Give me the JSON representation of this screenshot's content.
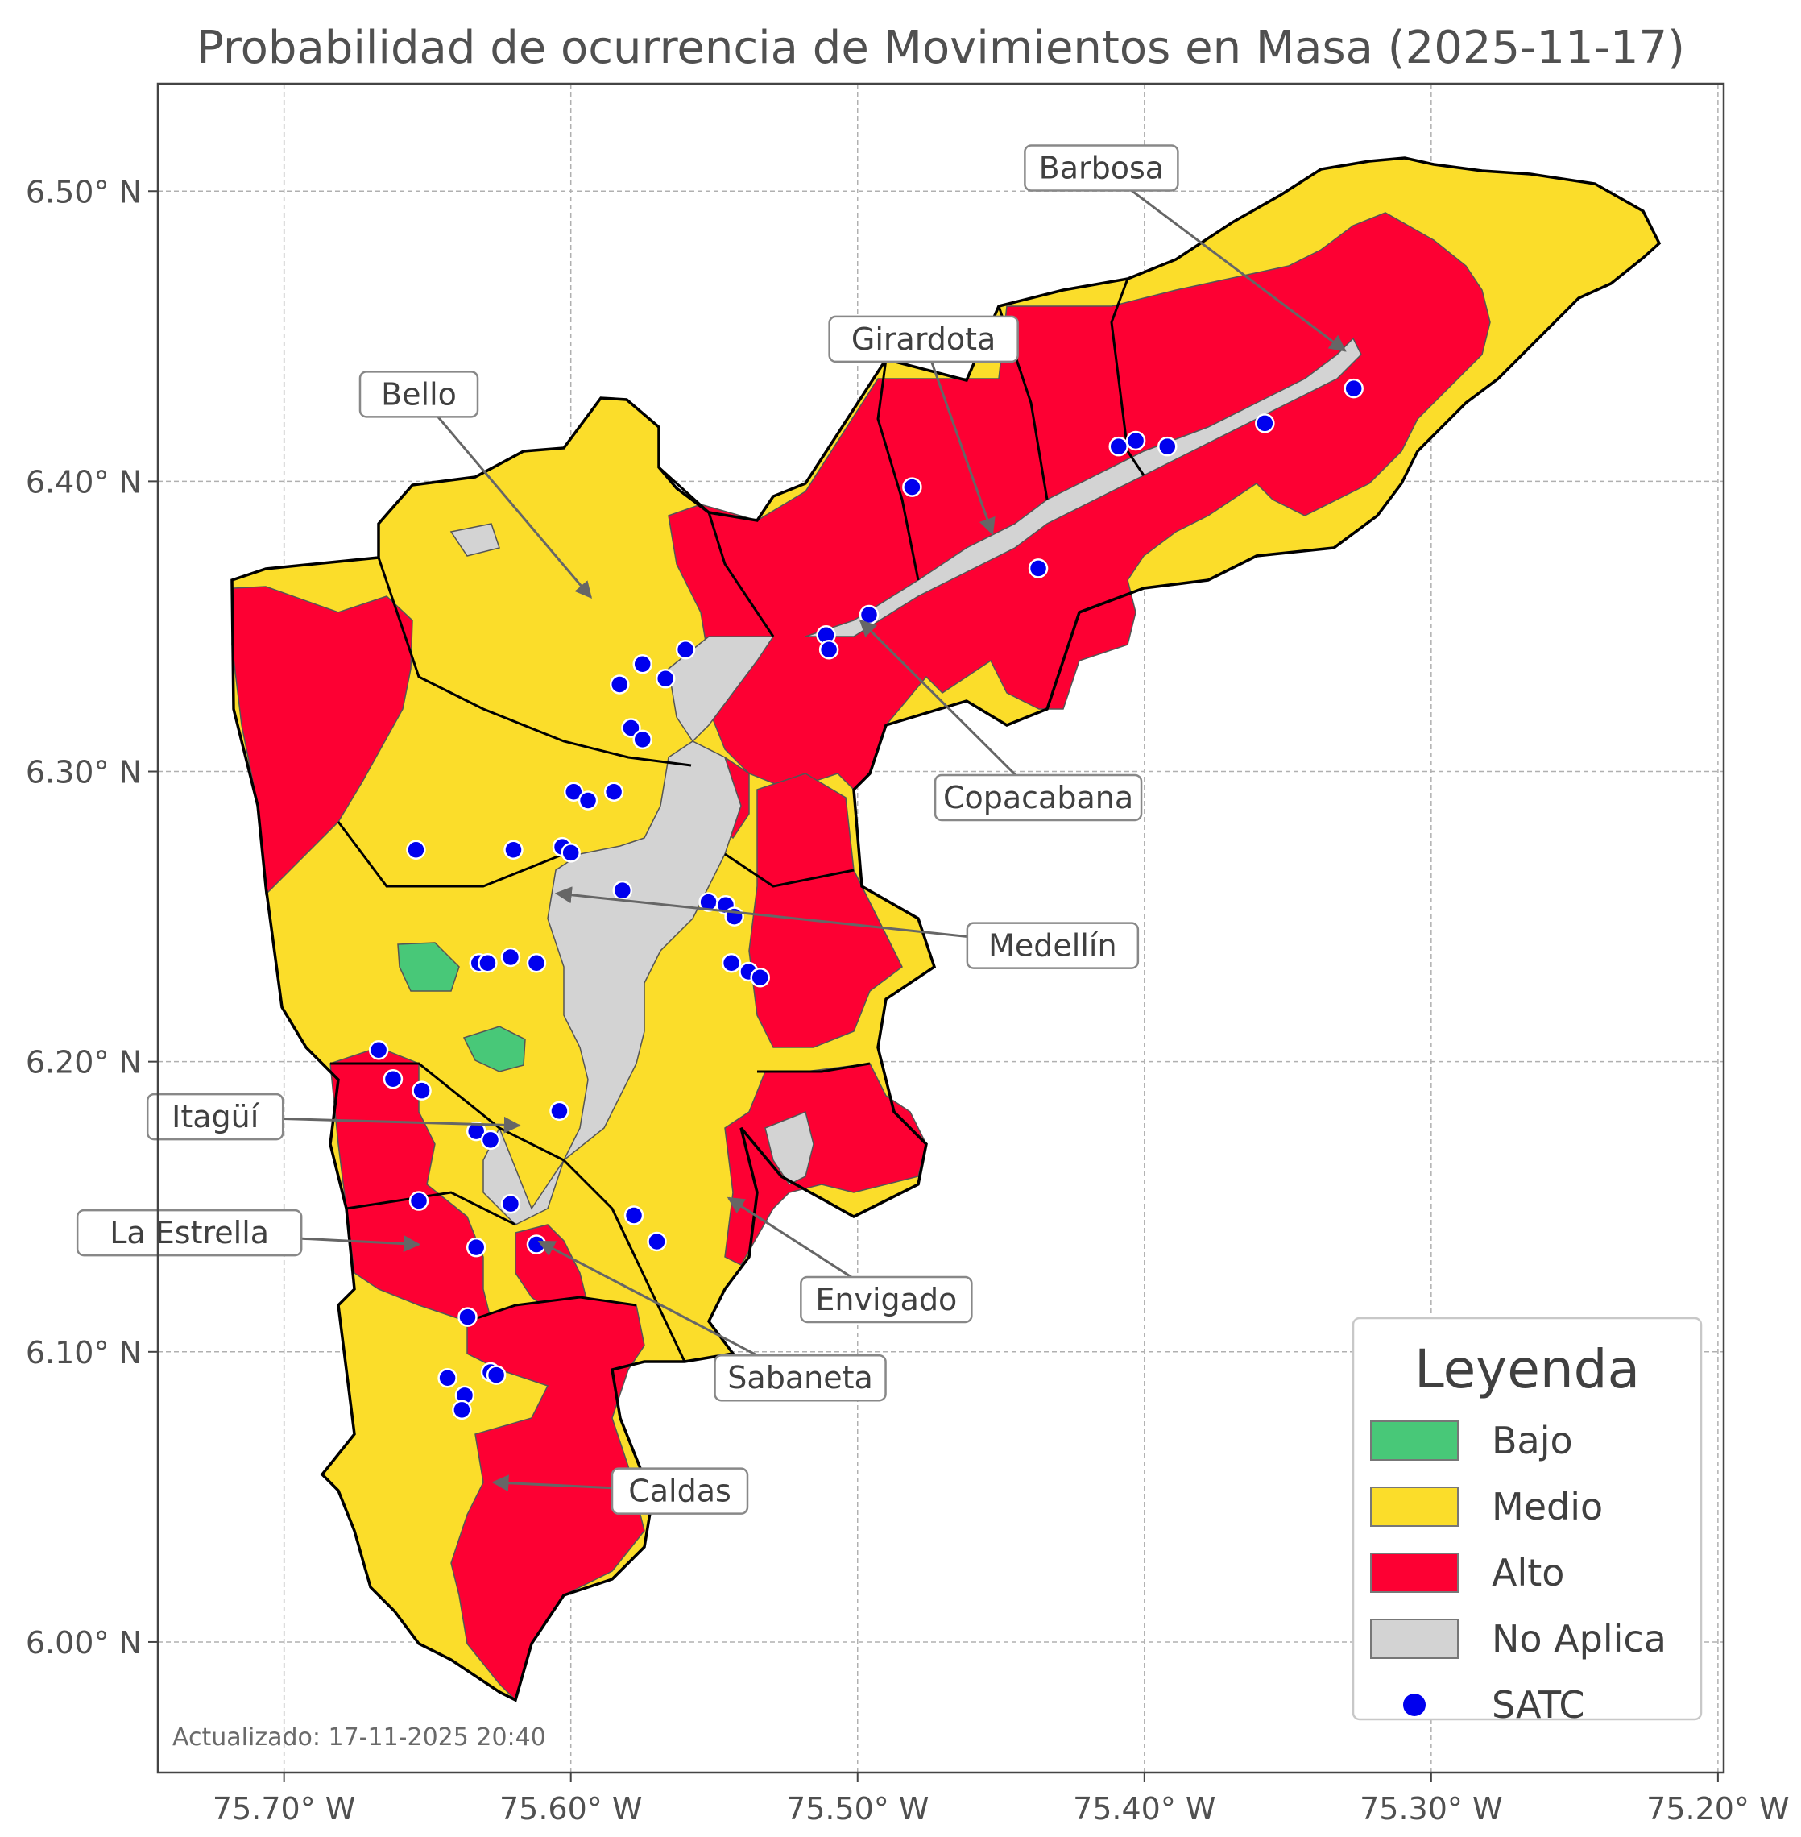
{
  "title": "Probabilidad de ocurrencia de Movimientos en Masa (2025-11-17)",
  "axes": {
    "x_ticks": [
      "75.70° W",
      "75.60° W",
      "75.50° W",
      "75.40° W",
      "75.30° W",
      "75.20° W"
    ],
    "y_ticks": [
      "6.50° N",
      "6.40° N",
      "6.30° N",
      "6.20° N",
      "6.10° N",
      "6.00° N"
    ],
    "lon_range": [
      -75.744,
      -75.198
    ],
    "lat_range": [
      5.955,
      6.537
    ],
    "grid": true
  },
  "municipalities": [
    {
      "name": "Barbosa",
      "label_lon": -75.415,
      "label_lat": 6.508,
      "target_lon": -75.33,
      "target_lat": 6.445
    },
    {
      "name": "Girardota",
      "label_lon": -75.477,
      "label_lat": 6.449,
      "target_lon": -75.453,
      "target_lat": 6.382
    },
    {
      "name": "Bello",
      "label_lon": -75.653,
      "label_lat": 6.43,
      "target_lon": -75.593,
      "target_lat": 6.36
    },
    {
      "name": "Copacabana",
      "label_lon": -75.437,
      "label_lat": 6.291,
      "target_lon": -75.499,
      "target_lat": 6.352
    },
    {
      "name": "Medellín",
      "label_lon": -75.432,
      "label_lat": 6.24,
      "target_lon": -75.605,
      "target_lat": 6.258
    },
    {
      "name": "Itagüí",
      "label_lon": -75.724,
      "label_lat": 6.181,
      "target_lon": -75.618,
      "target_lat": 6.178
    },
    {
      "name": "La Estrella",
      "label_lon": -75.733,
      "label_lat": 6.141,
      "target_lon": -75.653,
      "target_lat": 6.137
    },
    {
      "name": "Envigado",
      "label_lon": -75.49,
      "label_lat": 6.118,
      "target_lon": -75.545,
      "target_lat": 6.153
    },
    {
      "name": "Sabaneta",
      "label_lon": -75.52,
      "label_lat": 6.091,
      "target_lon": -75.611,
      "target_lat": 6.138
    },
    {
      "name": "Caldas",
      "label_lon": -75.562,
      "label_lat": 6.052,
      "target_lon": -75.627,
      "target_lat": 6.055
    }
  ],
  "legend": {
    "title": "Leyenda",
    "placement": "bottom-right",
    "items": [
      {
        "label": "Bajo",
        "color": "#48c878",
        "kind": "patch"
      },
      {
        "label": "Medio",
        "color": "#fbdd2a",
        "kind": "patch"
      },
      {
        "label": "Alto",
        "color": "#fd0033",
        "kind": "patch"
      },
      {
        "label": "No Aplica",
        "color": "#d3d3d3",
        "kind": "patch"
      },
      {
        "label": "SATC",
        "color": "#0000ee",
        "kind": "marker"
      }
    ]
  },
  "colors": {
    "bajo": "#48c878",
    "medio": "#fbdd2a",
    "alto": "#fd0033",
    "no_aplica": "#d3d3d3",
    "satc": "#0000ee",
    "border": "#000000",
    "inner_border": "#555555"
  },
  "satc_stations": [
    [
      -75.327,
      6.432
    ],
    [
      -75.358,
      6.42
    ],
    [
      -75.392,
      6.412
    ],
    [
      -75.403,
      6.414
    ],
    [
      -75.409,
      6.412
    ],
    [
      -75.481,
      6.398
    ],
    [
      -75.437,
      6.37
    ],
    [
      -75.496,
      6.354
    ],
    [
      -75.511,
      6.347
    ],
    [
      -75.51,
      6.342
    ],
    [
      -75.56,
      6.342
    ],
    [
      -75.567,
      6.332
    ],
    [
      -75.575,
      6.337
    ],
    [
      -75.583,
      6.33
    ],
    [
      -75.579,
      6.315
    ],
    [
      -75.575,
      6.311
    ],
    [
      -75.599,
      6.293
    ],
    [
      -75.594,
      6.29
    ],
    [
      -75.585,
      6.293
    ],
    [
      -75.654,
      6.273
    ],
    [
      -75.62,
      6.273
    ],
    [
      -75.603,
      6.274
    ],
    [
      -75.6,
      6.272
    ],
    [
      -75.582,
      6.259
    ],
    [
      -75.552,
      6.255
    ],
    [
      -75.546,
      6.254
    ],
    [
      -75.543,
      6.25
    ],
    [
      -75.544,
      6.234
    ],
    [
      -75.538,
      6.231
    ],
    [
      -75.534,
      6.229
    ],
    [
      -75.632,
      6.234
    ],
    [
      -75.629,
      6.234
    ],
    [
      -75.621,
      6.236
    ],
    [
      -75.612,
      6.234
    ],
    [
      -75.667,
      6.204
    ],
    [
      -75.662,
      6.194
    ],
    [
      -75.652,
      6.19
    ],
    [
      -75.604,
      6.183
    ],
    [
      -75.633,
      6.176
    ],
    [
      -75.628,
      6.173
    ],
    [
      -75.653,
      6.152
    ],
    [
      -75.621,
      6.151
    ],
    [
      -75.578,
      6.147
    ],
    [
      -75.57,
      6.138
    ],
    [
      -75.612,
      6.137
    ],
    [
      -75.633,
      6.136
    ],
    [
      -75.636,
      6.112
    ],
    [
      -75.643,
      6.091
    ],
    [
      -75.628,
      6.093
    ],
    [
      -75.626,
      6.092
    ],
    [
      -75.637,
      6.085
    ],
    [
      -75.638,
      6.08
    ]
  ],
  "updated": "Actualizado: 17-11-2025 20:40"
}
